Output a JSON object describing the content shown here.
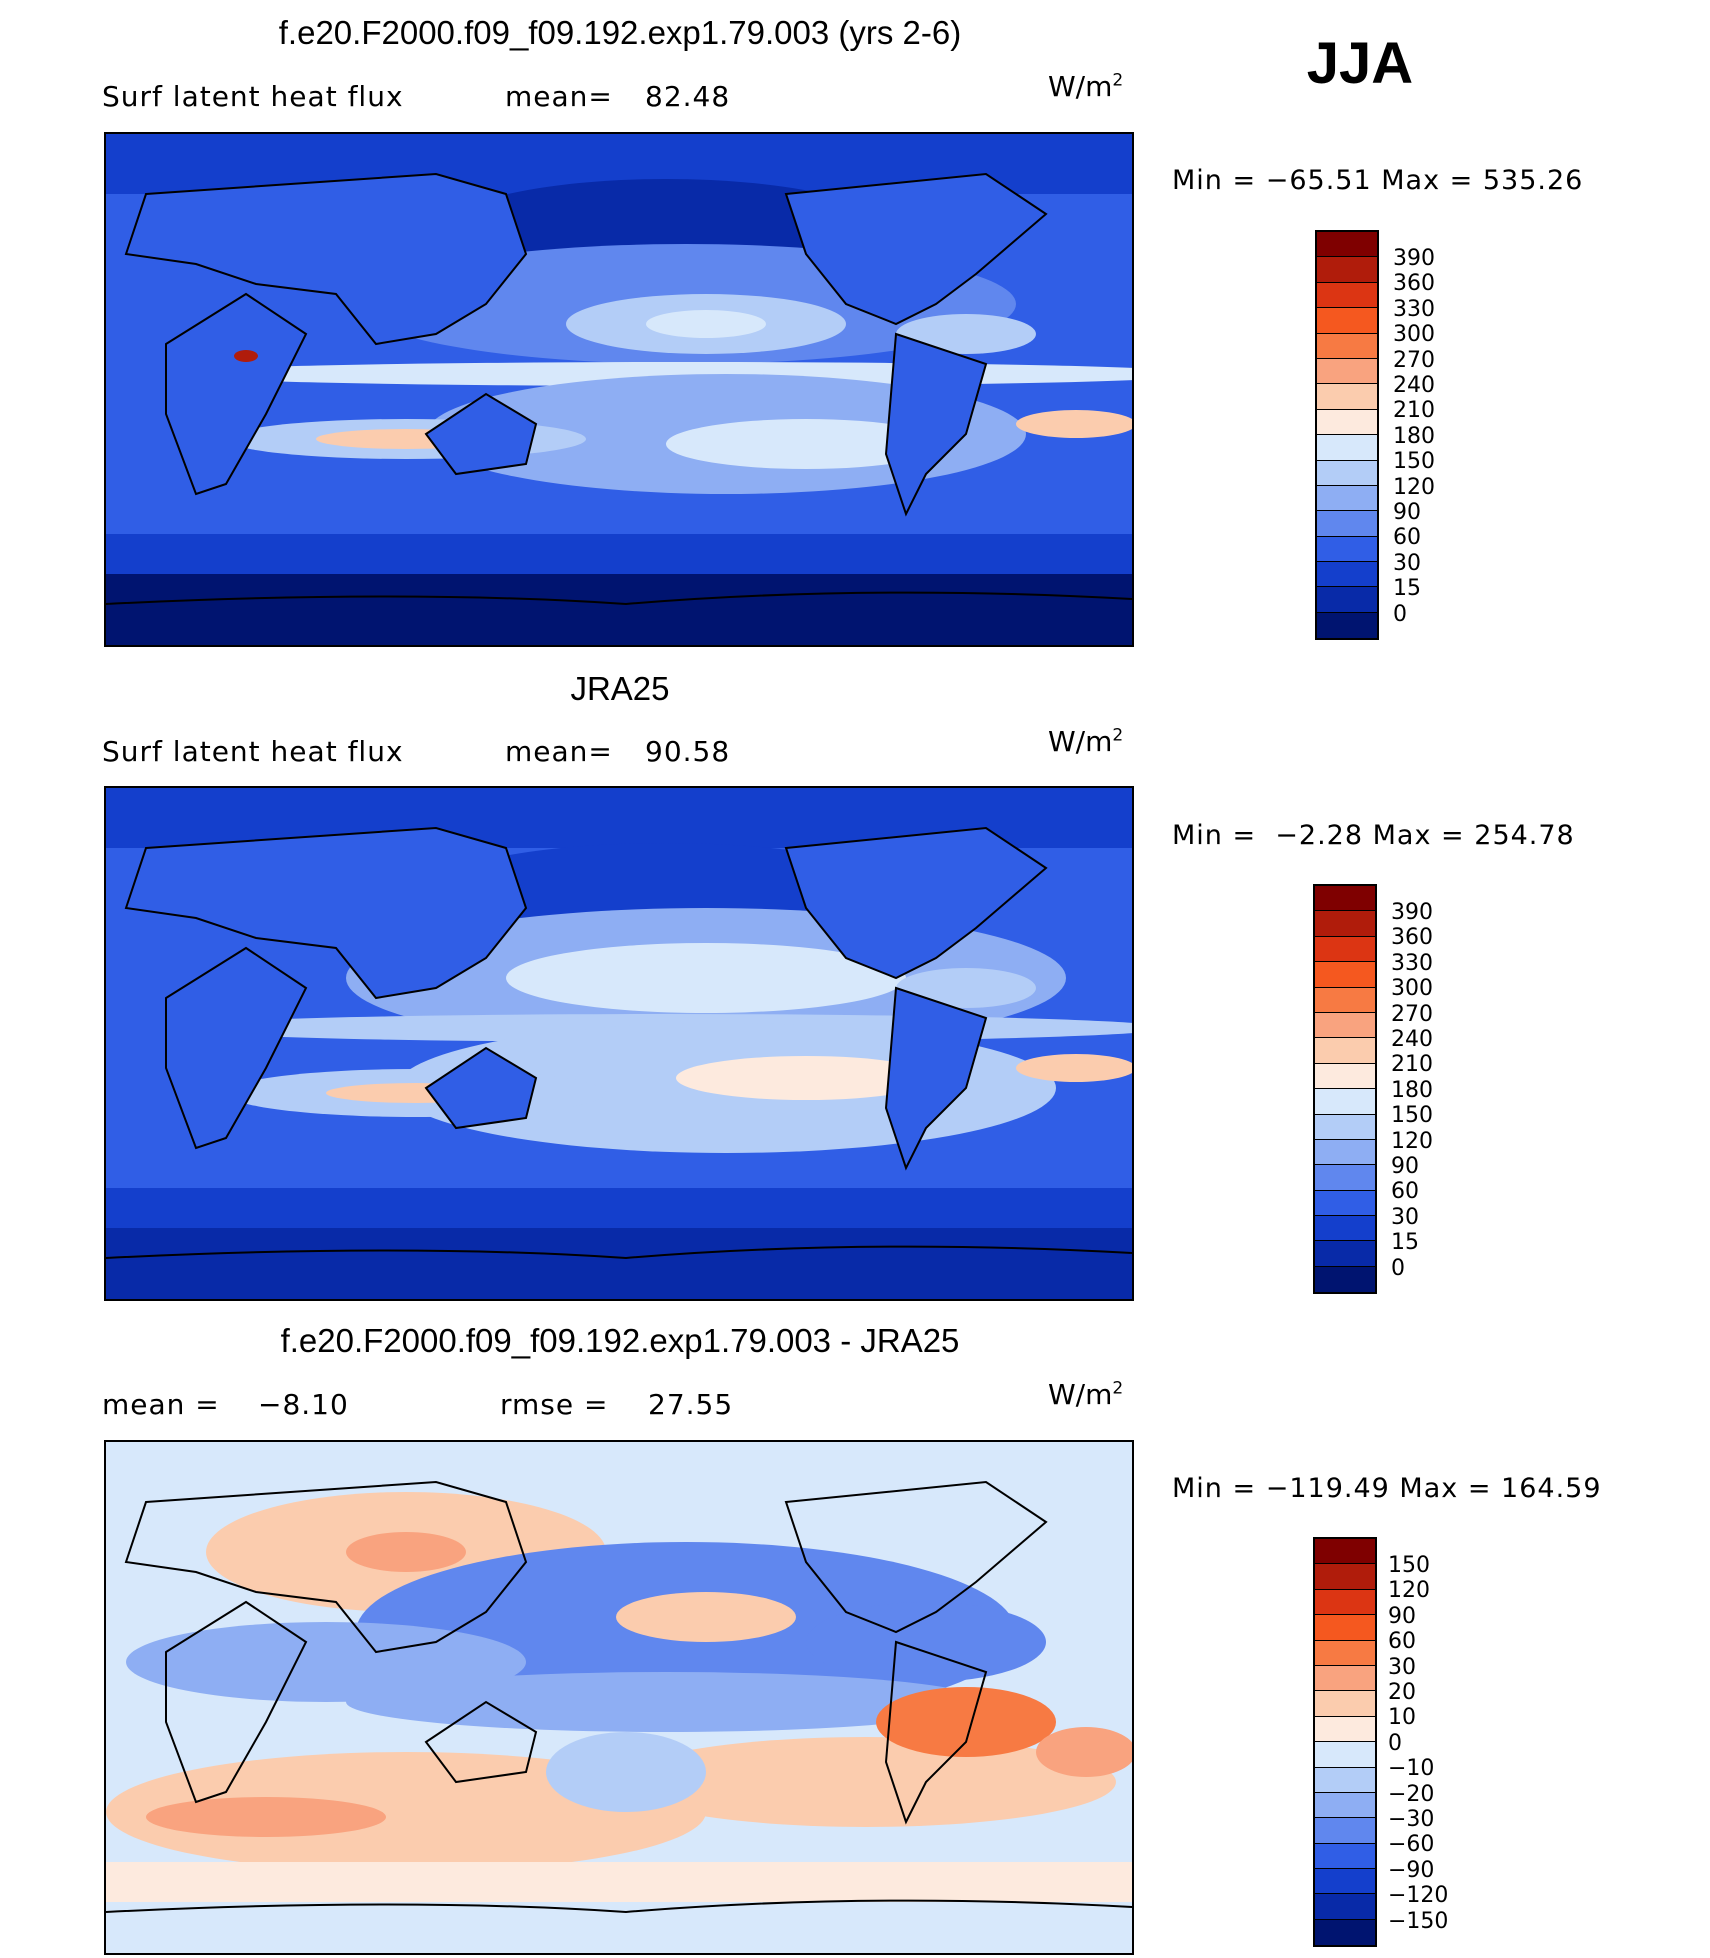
{
  "season": "JJA",
  "panels": [
    {
      "title": "f.e20.F2000.f09_f09.192.exp1.79.003 (yrs 2-6)",
      "left_label": "Surf latent heat flux",
      "stat1_label": "mean=",
      "stat1_value": "82.48",
      "stat2_label": "",
      "stat2_value": "",
      "units": "W/m",
      "units_sup": "2",
      "min_label": "Min =",
      "min_value": "−65.51",
      "max_label": "Max =",
      "max_value": "535.26",
      "colorbar": {
        "labels": [
          "390",
          "360",
          "330",
          "300",
          "270",
          "240",
          "210",
          "180",
          "150",
          "120",
          "90",
          "60",
          "30",
          "15",
          "0"
        ],
        "colors": [
          "#7f0000",
          "#b01c0b",
          "#dc3513",
          "#f5581f",
          "#f77a43",
          "#f9a37f",
          "#fbccae",
          "#fdeade",
          "#d7e8fb",
          "#b3cdf7",
          "#8eaef3",
          "#6087ee",
          "#305ee6",
          "#143fcc",
          "#082aa8",
          "#001470"
        ]
      }
    },
    {
      "title": "JRA25",
      "left_label": "Surf latent heat flux",
      "stat1_label": "mean=",
      "stat1_value": "90.58",
      "stat2_label": "",
      "stat2_value": "",
      "units": "W/m",
      "units_sup": "2",
      "min_label": "Min =",
      "min_value": "−2.28",
      "max_label": "Max =",
      "max_value": "254.78",
      "colorbar": {
        "labels": [
          "390",
          "360",
          "330",
          "300",
          "270",
          "240",
          "210",
          "180",
          "150",
          "120",
          "90",
          "60",
          "30",
          "15",
          "0"
        ],
        "colors": [
          "#7f0000",
          "#b01c0b",
          "#dc3513",
          "#f5581f",
          "#f77a43",
          "#f9a37f",
          "#fbccae",
          "#fdeade",
          "#d7e8fb",
          "#b3cdf7",
          "#8eaef3",
          "#6087ee",
          "#305ee6",
          "#143fcc",
          "#082aa8",
          "#001470"
        ]
      }
    },
    {
      "title": "f.e20.F2000.f09_f09.192.exp1.79.003 - JRA25",
      "left_label": "",
      "stat1_label": "mean =",
      "stat1_value": "−8.10",
      "stat2_label": "rmse =",
      "stat2_value": "27.55",
      "units": "W/m",
      "units_sup": "2",
      "min_label": "Min =",
      "min_value": "−119.49",
      "max_label": "Max =",
      "max_value": "164.59",
      "colorbar": {
        "labels": [
          "150",
          "120",
          "90",
          "60",
          "30",
          "20",
          "10",
          "0",
          "−10",
          "−20",
          "−30",
          "−60",
          "−90",
          "−120",
          "−150"
        ],
        "colors": [
          "#7f0000",
          "#b01c0b",
          "#dc3513",
          "#f5581f",
          "#f77a43",
          "#f9a37f",
          "#fbccae",
          "#fdeade",
          "#d7e8fb",
          "#b3cdf7",
          "#8eaef3",
          "#6087ee",
          "#305ee6",
          "#143fcc",
          "#082aa8",
          "#001470"
        ]
      }
    }
  ]
}
